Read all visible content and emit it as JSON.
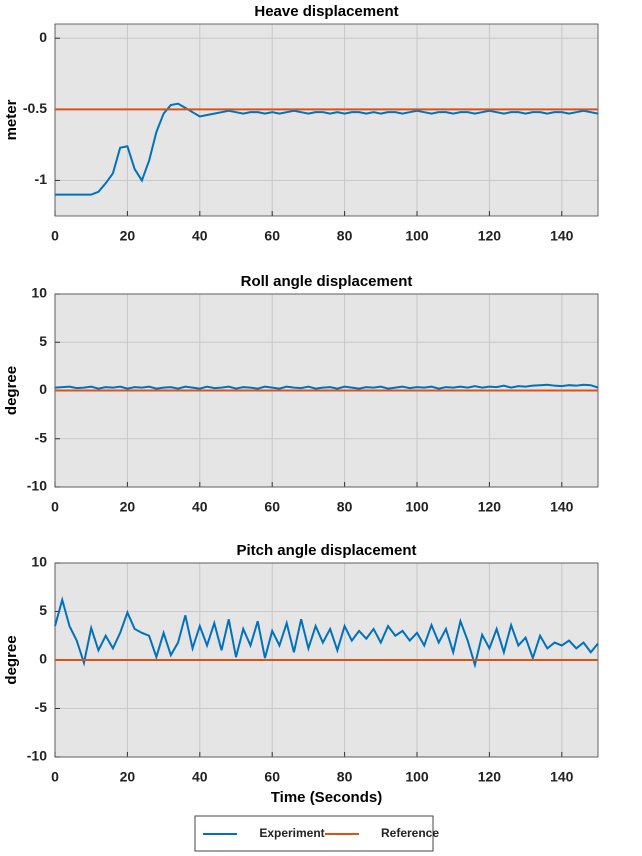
{
  "chart_data": [
    {
      "type": "line",
      "title": "Heave displacement",
      "ylabel": "meter",
      "x": [
        0,
        2,
        4,
        6,
        8,
        10,
        12,
        14,
        16,
        18,
        20,
        22,
        24,
        26,
        28,
        30,
        32,
        34,
        36,
        38,
        40,
        42,
        44,
        46,
        48,
        50,
        52,
        54,
        56,
        58,
        60,
        62,
        64,
        66,
        68,
        70,
        72,
        74,
        76,
        78,
        80,
        82,
        84,
        86,
        88,
        90,
        92,
        94,
        96,
        98,
        100,
        102,
        104,
        106,
        108,
        110,
        112,
        114,
        116,
        118,
        120,
        122,
        124,
        126,
        128,
        130,
        132,
        134,
        136,
        138,
        140,
        142,
        144,
        146,
        148,
        150
      ],
      "series": [
        {
          "name": "Experiment",
          "color": "#0072BD",
          "values": [
            -1.1,
            -1.1,
            -1.1,
            -1.1,
            -1.1,
            -1.1,
            -1.08,
            -1.02,
            -0.95,
            -0.77,
            -0.76,
            -0.92,
            -1.0,
            -0.86,
            -0.66,
            -0.53,
            -0.47,
            -0.46,
            -0.49,
            -0.52,
            -0.55,
            -0.54,
            -0.53,
            -0.52,
            -0.51,
            -0.52,
            -0.53,
            -0.52,
            -0.52,
            -0.53,
            -0.52,
            -0.53,
            -0.52,
            -0.51,
            -0.52,
            -0.53,
            -0.52,
            -0.52,
            -0.53,
            -0.52,
            -0.53,
            -0.52,
            -0.52,
            -0.53,
            -0.52,
            -0.53,
            -0.52,
            -0.52,
            -0.53,
            -0.52,
            -0.51,
            -0.52,
            -0.53,
            -0.52,
            -0.52,
            -0.53,
            -0.52,
            -0.52,
            -0.53,
            -0.52,
            -0.51,
            -0.52,
            -0.53,
            -0.52,
            -0.52,
            -0.53,
            -0.52,
            -0.52,
            -0.53,
            -0.52,
            -0.52,
            -0.53,
            -0.52,
            -0.51,
            -0.52,
            -0.53
          ]
        },
        {
          "name": "Reference",
          "color": "#D95319",
          "values": [
            -0.5,
            -0.5,
            -0.5,
            -0.5,
            -0.5,
            -0.5,
            -0.5,
            -0.5,
            -0.5,
            -0.5,
            -0.5,
            -0.5,
            -0.5,
            -0.5,
            -0.5,
            -0.5,
            -0.5,
            -0.5,
            -0.5,
            -0.5,
            -0.5,
            -0.5,
            -0.5,
            -0.5,
            -0.5,
            -0.5,
            -0.5,
            -0.5,
            -0.5,
            -0.5,
            -0.5,
            -0.5,
            -0.5,
            -0.5,
            -0.5,
            -0.5,
            -0.5,
            -0.5,
            -0.5,
            -0.5,
            -0.5,
            -0.5,
            -0.5,
            -0.5,
            -0.5,
            -0.5,
            -0.5,
            -0.5,
            -0.5,
            -0.5,
            -0.5,
            -0.5,
            -0.5,
            -0.5,
            -0.5,
            -0.5,
            -0.5,
            -0.5,
            -0.5,
            -0.5,
            -0.5,
            -0.5,
            -0.5,
            -0.5,
            -0.5,
            -0.5,
            -0.5,
            -0.5,
            -0.5,
            -0.5,
            -0.5,
            -0.5,
            -0.5,
            -0.5,
            -0.5,
            -0.5
          ]
        }
      ],
      "xlim": [
        0,
        150
      ],
      "xticks": [
        0,
        20,
        40,
        60,
        80,
        100,
        120,
        140
      ],
      "ylim": [
        -1.25,
        0.1
      ],
      "yticks": [
        -1,
        -0.5,
        0
      ],
      "grid": true,
      "legend": "bottom"
    },
    {
      "type": "line",
      "title": "Roll angle displacement",
      "ylabel": "degree",
      "x": [
        0,
        2,
        4,
        6,
        8,
        10,
        12,
        14,
        16,
        18,
        20,
        22,
        24,
        26,
        28,
        30,
        32,
        34,
        36,
        38,
        40,
        42,
        44,
        46,
        48,
        50,
        52,
        54,
        56,
        58,
        60,
        62,
        64,
        66,
        68,
        70,
        72,
        74,
        76,
        78,
        80,
        82,
        84,
        86,
        88,
        90,
        92,
        94,
        96,
        98,
        100,
        102,
        104,
        106,
        108,
        110,
        112,
        114,
        116,
        118,
        120,
        122,
        124,
        126,
        128,
        130,
        132,
        134,
        136,
        138,
        140,
        142,
        144,
        146,
        148,
        150
      ],
      "series": [
        {
          "name": "Experiment",
          "color": "#0072BD",
          "values": [
            0.3,
            0.35,
            0.4,
            0.25,
            0.3,
            0.4,
            0.2,
            0.35,
            0.3,
            0.4,
            0.2,
            0.35,
            0.3,
            0.4,
            0.2,
            0.3,
            0.35,
            0.2,
            0.4,
            0.3,
            0.2,
            0.4,
            0.25,
            0.3,
            0.4,
            0.2,
            0.35,
            0.3,
            0.2,
            0.4,
            0.3,
            0.2,
            0.4,
            0.3,
            0.25,
            0.4,
            0.2,
            0.3,
            0.35,
            0.2,
            0.4,
            0.3,
            0.2,
            0.35,
            0.3,
            0.4,
            0.2,
            0.3,
            0.4,
            0.25,
            0.35,
            0.3,
            0.4,
            0.2,
            0.35,
            0.3,
            0.4,
            0.3,
            0.45,
            0.3,
            0.4,
            0.35,
            0.5,
            0.3,
            0.45,
            0.4,
            0.5,
            0.55,
            0.6,
            0.5,
            0.45,
            0.55,
            0.5,
            0.6,
            0.55,
            0.3
          ]
        },
        {
          "name": "Reference",
          "color": "#D95319",
          "values": [
            0,
            0,
            0,
            0,
            0,
            0,
            0,
            0,
            0,
            0,
            0,
            0,
            0,
            0,
            0,
            0,
            0,
            0,
            0,
            0,
            0,
            0,
            0,
            0,
            0,
            0,
            0,
            0,
            0,
            0,
            0,
            0,
            0,
            0,
            0,
            0,
            0,
            0,
            0,
            0,
            0,
            0,
            0,
            0,
            0,
            0,
            0,
            0,
            0,
            0,
            0,
            0,
            0,
            0,
            0,
            0,
            0,
            0,
            0,
            0,
            0,
            0,
            0,
            0,
            0,
            0,
            0,
            0,
            0,
            0,
            0,
            0,
            0,
            0,
            0,
            0
          ]
        }
      ],
      "xlim": [
        0,
        150
      ],
      "xticks": [
        0,
        20,
        40,
        60,
        80,
        100,
        120,
        140
      ],
      "ylim": [
        -10,
        10
      ],
      "yticks": [
        -10,
        -5,
        0,
        5,
        10
      ],
      "grid": true
    },
    {
      "type": "line",
      "title": "Pitch angle displacement",
      "ylabel": "degree",
      "xlabel": "Time (Seconds)",
      "x": [
        0,
        2,
        4,
        6,
        8,
        10,
        12,
        14,
        16,
        18,
        20,
        22,
        24,
        26,
        28,
        30,
        32,
        34,
        36,
        38,
        40,
        42,
        44,
        46,
        48,
        50,
        52,
        54,
        56,
        58,
        60,
        62,
        64,
        66,
        68,
        70,
        72,
        74,
        76,
        78,
        80,
        82,
        84,
        86,
        88,
        90,
        92,
        94,
        96,
        98,
        100,
        102,
        104,
        106,
        108,
        110,
        112,
        114,
        116,
        118,
        120,
        122,
        124,
        126,
        128,
        130,
        132,
        134,
        136,
        138,
        140,
        142,
        144,
        146,
        148,
        150
      ],
      "series": [
        {
          "name": "Experiment",
          "color": "#0072BD",
          "values": [
            3.5,
            6.2,
            3.5,
            2.0,
            -0.3,
            3.3,
            1.0,
            2.5,
            1.2,
            2.8,
            4.9,
            3.2,
            2.8,
            2.5,
            0.3,
            2.8,
            0.5,
            1.8,
            4.6,
            1.2,
            3.5,
            1.5,
            3.8,
            1.0,
            4.2,
            0.3,
            3.2,
            1.5,
            4.0,
            0.2,
            3.0,
            1.5,
            3.8,
            0.8,
            4.2,
            1.2,
            3.5,
            1.8,
            3.2,
            1.0,
            3.5,
            2.0,
            3.0,
            2.2,
            3.2,
            1.8,
            3.5,
            2.5,
            3.0,
            2.0,
            2.8,
            1.5,
            3.6,
            1.8,
            3.2,
            0.8,
            4.0,
            2.0,
            -0.5,
            2.6,
            1.2,
            3.2,
            0.8,
            3.6,
            1.5,
            2.3,
            0.2,
            2.5,
            1.2,
            1.8,
            1.5,
            2.0,
            1.2,
            1.8,
            0.8,
            1.7
          ]
        },
        {
          "name": "Reference",
          "color": "#D95319",
          "values": [
            0,
            0,
            0,
            0,
            0,
            0,
            0,
            0,
            0,
            0,
            0,
            0,
            0,
            0,
            0,
            0,
            0,
            0,
            0,
            0,
            0,
            0,
            0,
            0,
            0,
            0,
            0,
            0,
            0,
            0,
            0,
            0,
            0,
            0,
            0,
            0,
            0,
            0,
            0,
            0,
            0,
            0,
            0,
            0,
            0,
            0,
            0,
            0,
            0,
            0,
            0,
            0,
            0,
            0,
            0,
            0,
            0,
            0,
            0,
            0,
            0,
            0,
            0,
            0,
            0,
            0,
            0,
            0,
            0,
            0,
            0,
            0,
            0,
            0,
            0,
            0
          ]
        }
      ],
      "xlim": [
        0,
        150
      ],
      "xticks": [
        0,
        20,
        40,
        60,
        80,
        100,
        120,
        140
      ],
      "ylim": [
        -10,
        10
      ],
      "yticks": [
        -10,
        -5,
        0,
        5,
        10
      ],
      "grid": true
    }
  ]
}
